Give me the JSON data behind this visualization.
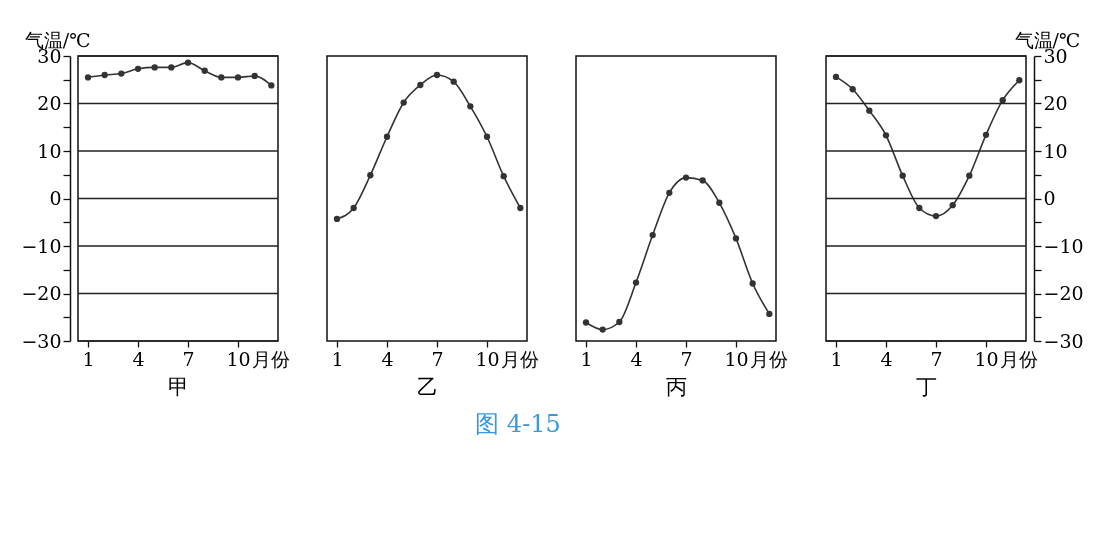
{
  "chart_data": [
    {
      "type": "line",
      "title": "甲",
      "ylabel": "气温/℃",
      "xlabel": "月份",
      "x": [
        1,
        2,
        3,
        4,
        5,
        6,
        7,
        8,
        9,
        10,
        11,
        12
      ],
      "series": [
        {
          "color": "#333333",
          "values": [
            25.5,
            26,
            26.3,
            27.3,
            27.6,
            27.6,
            28.6,
            26.9,
            25.5,
            25.5,
            25.8,
            23.8
          ]
        }
      ],
      "xlim": [
        0.4,
        12.4
      ],
      "xticks": [
        1,
        4,
        7,
        10
      ],
      "ylim": [
        -30,
        30
      ],
      "yticks": [
        -30,
        {
          "value": -25,
          "label": null
        },
        -20,
        {
          "value": -15,
          "label": null
        },
        -10,
        {
          "value": -5,
          "label": null
        },
        0,
        {
          "value": 5,
          "label": null
        },
        10,
        {
          "value": 15,
          "label": null
        },
        20,
        {
          "value": 25,
          "label": null
        },
        30
      ],
      "grid": "y",
      "marker": "circle"
    },
    {
      "type": "line",
      "title": "乙",
      "xlabel": "月份",
      "x": [
        1,
        2,
        3,
        4,
        5,
        6,
        7,
        8,
        9,
        10,
        11,
        12
      ],
      "series": [
        {
          "color": "#333333",
          "values": [
            -4.3,
            -2,
            4.9,
            13,
            20.2,
            23.9,
            26,
            24.6,
            19.4,
            13,
            4.7,
            -2
          ]
        }
      ],
      "xlim": [
        0.4,
        12.4
      ],
      "xticks": [
        1,
        4,
        7,
        10
      ],
      "ylim": [
        -30,
        30
      ],
      "tick_labels": "x",
      "grid": "y",
      "marker": "circle"
    },
    {
      "type": "line",
      "title": "丙",
      "xlabel": "月份",
      "x": [
        1,
        2,
        3,
        4,
        5,
        6,
        7,
        8,
        9,
        10,
        11,
        12
      ],
      "series": [
        {
          "color": "#333333",
          "values": [
            -26.1,
            -27.6,
            -26,
            -17.7,
            -7.7,
            1.2,
            4.4,
            3.8,
            -0.9,
            -8.4,
            -17.9,
            -24.3
          ]
        }
      ],
      "xlim": [
        0.4,
        12.4
      ],
      "xticks": [
        1,
        4,
        7,
        10
      ],
      "ylim": [
        -30,
        30
      ],
      "tick_labels": "x",
      "grid": "y",
      "marker": "circle"
    },
    {
      "type": "line",
      "title": "丁",
      "y2label": "气温/℃",
      "xlabel": "月份",
      "x": [
        1,
        2,
        3,
        4,
        5,
        6,
        7,
        8,
        9,
        10,
        11,
        12
      ],
      "series": [
        {
          "color": "#333333",
          "axis": "y2",
          "values": [
            25.6,
            23,
            18.5,
            13.3,
            4.8,
            -2,
            -3.7,
            -1.4,
            4.8,
            13.4,
            20.7,
            24.9
          ]
        }
      ],
      "xlim": [
        0.4,
        12.4
      ],
      "xticks": [
        1,
        4,
        7,
        10
      ],
      "y2lim": [
        -30,
        30
      ],
      "y2ticks": [
        -30,
        {
          "value": -25,
          "label": null
        },
        -20,
        {
          "value": -15,
          "label": null
        },
        -10,
        {
          "value": -5,
          "label": null
        },
        0,
        {
          "value": 5,
          "label": null
        },
        10,
        {
          "value": 15,
          "label": null
        },
        20,
        {
          "value": 25,
          "label": null
        },
        30
      ],
      "grid": "y",
      "marker": "circle",
      "annotations": [
        "图 4-15"
      ]
    }
  ]
}
